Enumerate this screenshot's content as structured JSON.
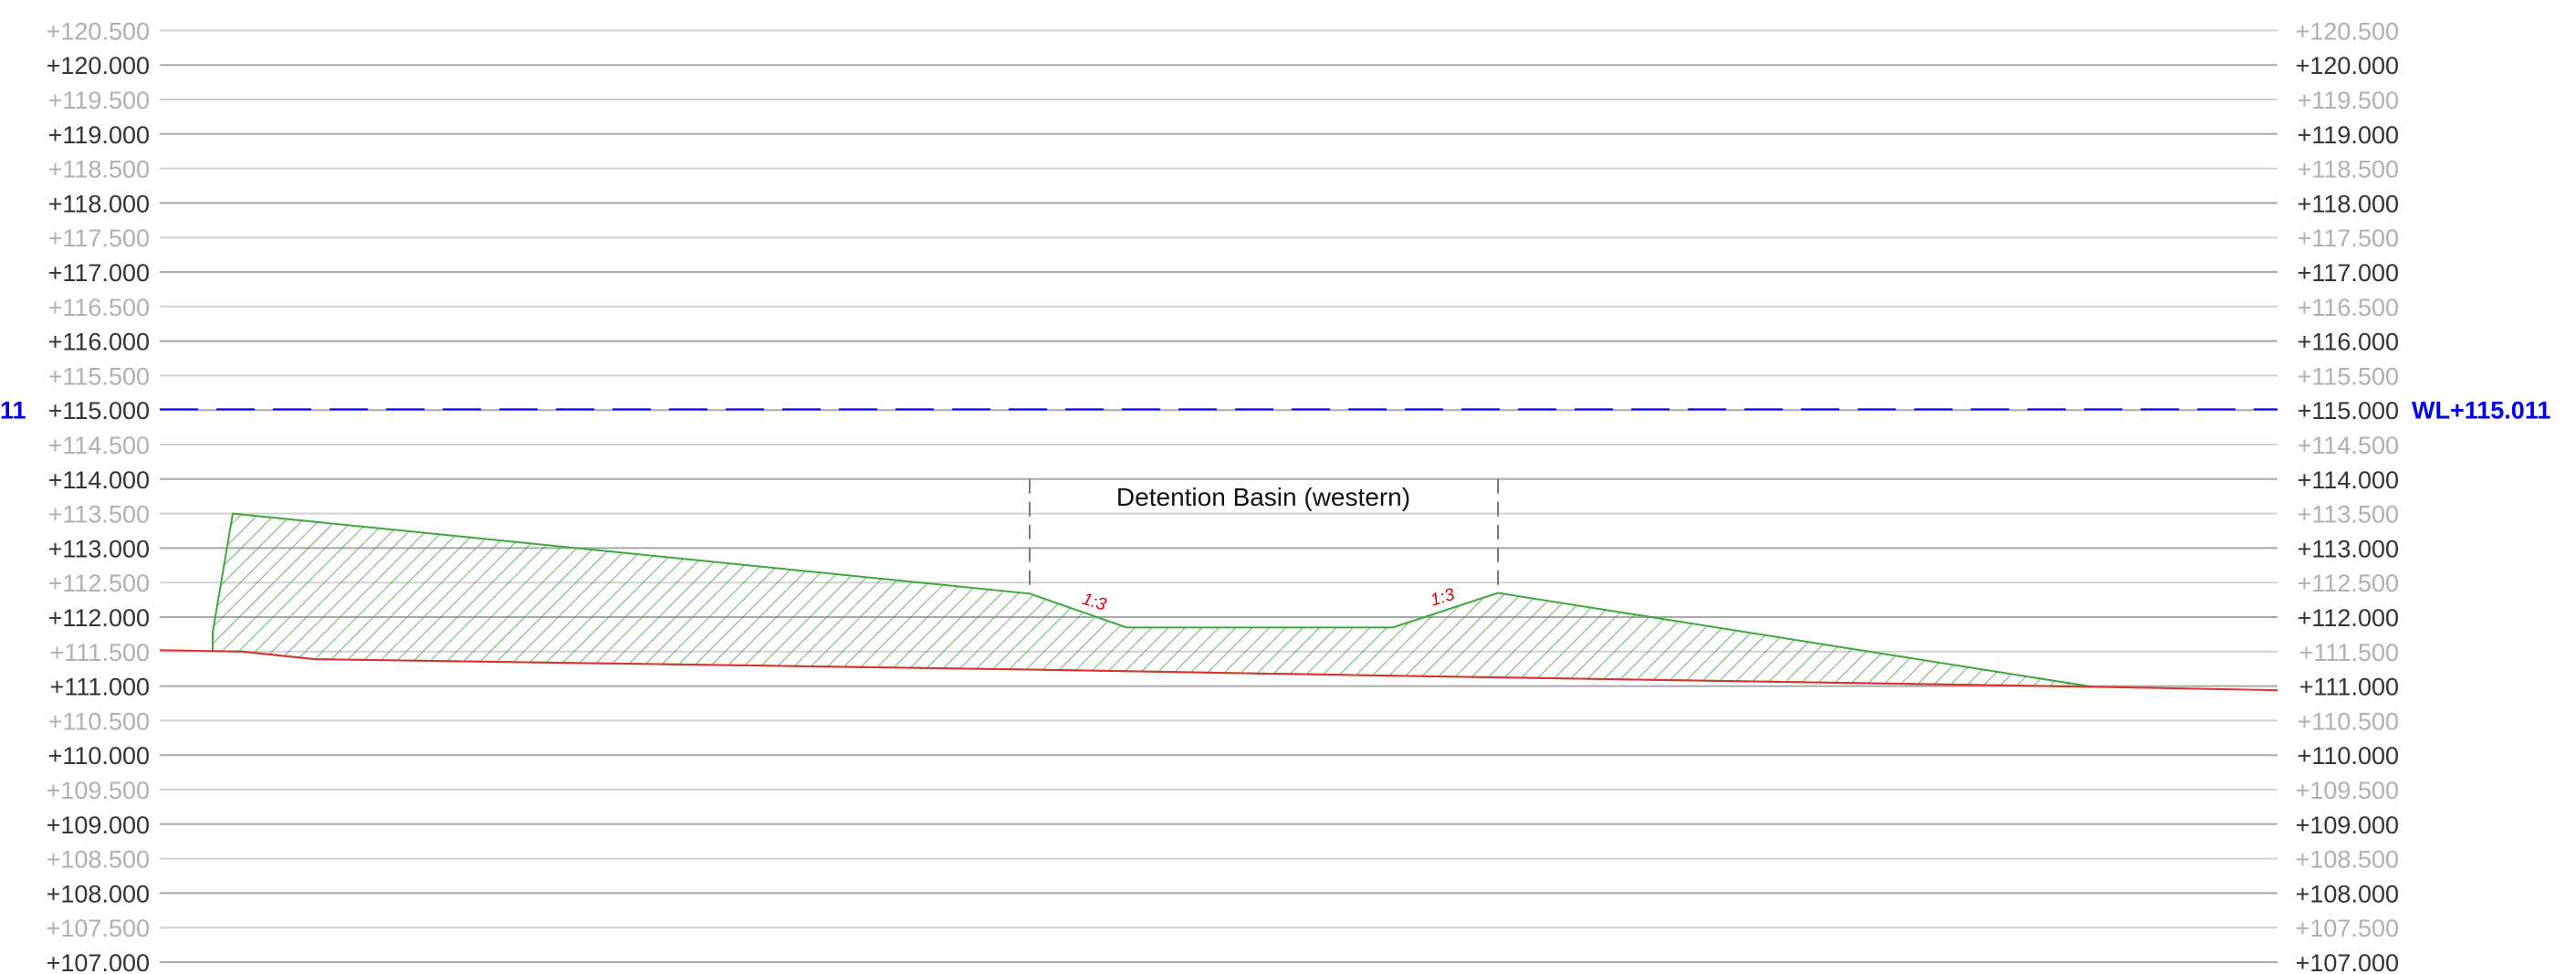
{
  "section": {
    "elevation_min": 107.0,
    "elevation_max": 120.5,
    "elevation_step": 0.5,
    "elevation_labels": [
      "+107.000",
      "+107.500",
      "+108.000",
      "+108.500",
      "+109.000",
      "+109.500",
      "+110.000",
      "+110.500",
      "+111.000",
      "+111.500",
      "+112.000",
      "+112.500",
      "+113.000",
      "+113.500",
      "+114.000",
      "+114.500",
      "+115.000",
      "+115.500",
      "+116.000",
      "+116.500",
      "+117.000",
      "+117.500",
      "+118.000",
      "+118.500",
      "+119.000",
      "+119.500",
      "+120.000",
      "+120.500"
    ],
    "water_level": {
      "elevation": 115.011,
      "label": "WL+115.011",
      "left_label_fragment": "11",
      "color": "#0000ee"
    },
    "existing_ground": {
      "color": "#e03030",
      "elevations": [
        111.52,
        111.5,
        111.39,
        111.24,
        111.15,
        110.99,
        110.94
      ]
    },
    "fill_section": {
      "color": "#3aaa3a",
      "top_elevations": [
        111.78,
        113.5,
        112.34,
        111.85,
        111.85,
        112.35,
        110.99
      ]
    },
    "basin": {
      "label": "Detention Basin (western)",
      "guide_color": "#7a7a7a",
      "side_slopes": [
        "1:3",
        "1:3"
      ],
      "slope_label_color": "#e00000"
    }
  }
}
